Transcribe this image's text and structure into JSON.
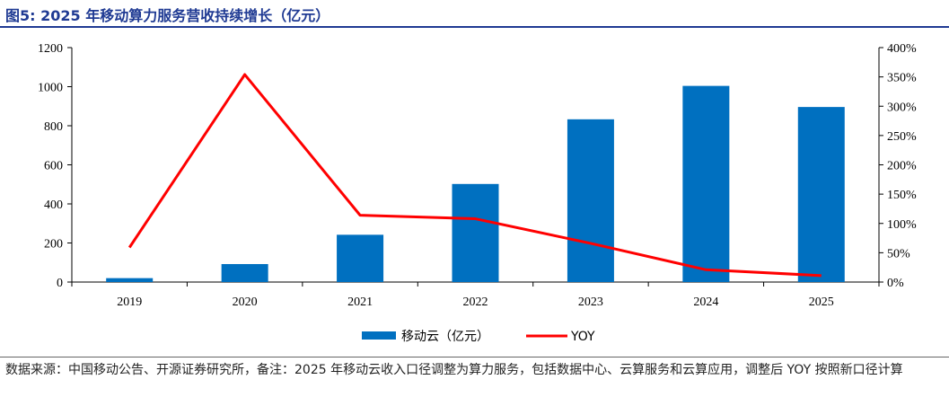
{
  "title": "图5:  2025 年移动算力服务营收持续增长（亿元）",
  "source_note": "数据来源：中国移动公告、开源证券研究所，备注：2025 年移动云收入口径调整为算力服务，包括数据中心、云算服务和云算应用，调整后 YOY 按照新口径计算",
  "colors": {
    "bar": "#0070c0",
    "line": "#ff0000",
    "title": "#1f3a93"
  },
  "chart_data": {
    "type": "bar+line",
    "categories": [
      "2019",
      "2020",
      "2021",
      "2022",
      "2023",
      "2024",
      "2025"
    ],
    "series": [
      {
        "name": "移动云（亿元）",
        "type": "bar",
        "axis": "left",
        "values": [
          20,
          92,
          242,
          502,
          833,
          1004,
          896
        ]
      },
      {
        "name": "YOY",
        "type": "line",
        "axis": "right",
        "values": [
          59,
          354,
          114,
          108,
          66,
          21,
          11
        ]
      }
    ],
    "y_left": {
      "min": 0,
      "max": 1200,
      "ticks": [
        "0",
        "200",
        "400",
        "600",
        "800",
        "1000",
        "1200"
      ]
    },
    "y_right": {
      "min": 0,
      "max": 400,
      "ticks": [
        "0%",
        "50%",
        "100%",
        "150%",
        "200%",
        "250%",
        "300%",
        "350%",
        "400%"
      ]
    },
    "grid": false,
    "legend_position": "bottom"
  }
}
